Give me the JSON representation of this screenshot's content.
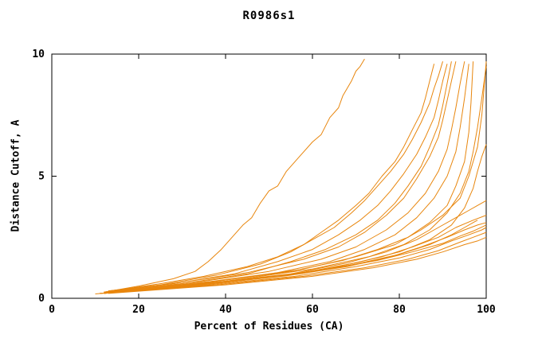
{
  "chart_data": {
    "type": "line",
    "title": "R0986s1",
    "xlabel": "Percent of Residues (CA)",
    "ylabel": "Distance Cutoff, A",
    "xlim": [
      0,
      100
    ],
    "ylim": [
      0,
      10
    ],
    "xticks": [
      0,
      20,
      40,
      60,
      80,
      100
    ],
    "yticks": [
      0,
      5,
      10
    ],
    "grid": false,
    "legend": "none",
    "line_color": "#e8860d",
    "axis_color": "#000000",
    "series": [
      {
        "points": [
          [
            12,
            0.25
          ],
          [
            20,
            0.5
          ],
          [
            28,
            0.8
          ],
          [
            33,
            1.1
          ],
          [
            36,
            1.5
          ],
          [
            39,
            2.0
          ],
          [
            42,
            2.6
          ],
          [
            44,
            3.0
          ],
          [
            46,
            3.3
          ],
          [
            48,
            3.9
          ],
          [
            50,
            4.4
          ],
          [
            52,
            4.6
          ],
          [
            54,
            5.2
          ],
          [
            57,
            5.8
          ],
          [
            60,
            6.4
          ],
          [
            62,
            6.7
          ],
          [
            64,
            7.4
          ],
          [
            66,
            7.8
          ],
          [
            67,
            8.3
          ],
          [
            69,
            8.9
          ],
          [
            70,
            9.3
          ],
          [
            71,
            9.5
          ],
          [
            72,
            9.8
          ]
        ]
      },
      {
        "points": [
          [
            12,
            0.25
          ],
          [
            25,
            0.6
          ],
          [
            35,
            0.9
          ],
          [
            45,
            1.3
          ],
          [
            52,
            1.7
          ],
          [
            58,
            2.2
          ],
          [
            62,
            2.7
          ],
          [
            66,
            3.2
          ],
          [
            70,
            3.8
          ],
          [
            73,
            4.3
          ],
          [
            76,
            5.0
          ],
          [
            79,
            5.6
          ],
          [
            81,
            6.2
          ],
          [
            83,
            6.9
          ],
          [
            85,
            7.6
          ],
          [
            86,
            8.2
          ],
          [
            87,
            8.9
          ],
          [
            88,
            9.6
          ]
        ]
      },
      {
        "points": [
          [
            13,
            0.3
          ],
          [
            25,
            0.55
          ],
          [
            38,
            0.95
          ],
          [
            48,
            1.4
          ],
          [
            55,
            1.9
          ],
          [
            60,
            2.4
          ],
          [
            65,
            2.9
          ],
          [
            69,
            3.5
          ],
          [
            72,
            4.0
          ],
          [
            75,
            4.6
          ],
          [
            78,
            5.2
          ],
          [
            81,
            5.9
          ],
          [
            83,
            6.5
          ],
          [
            85,
            7.2
          ],
          [
            87,
            8.0
          ],
          [
            88,
            8.6
          ],
          [
            89,
            9.1
          ],
          [
            90,
            9.7
          ]
        ]
      },
      {
        "points": [
          [
            13,
            0.3
          ],
          [
            28,
            0.6
          ],
          [
            42,
            1.0
          ],
          [
            52,
            1.5
          ],
          [
            60,
            2.0
          ],
          [
            66,
            2.6
          ],
          [
            71,
            3.2
          ],
          [
            75,
            3.8
          ],
          [
            78,
            4.4
          ],
          [
            81,
            5.1
          ],
          [
            84,
            5.9
          ],
          [
            86,
            6.6
          ],
          [
            88,
            7.4
          ],
          [
            89,
            8.1
          ],
          [
            90,
            8.9
          ],
          [
            91,
            9.6
          ]
        ]
      },
      {
        "points": [
          [
            12,
            0.2
          ],
          [
            30,
            0.6
          ],
          [
            45,
            1.0
          ],
          [
            55,
            1.5
          ],
          [
            63,
            2.0
          ],
          [
            70,
            2.6
          ],
          [
            75,
            3.2
          ],
          [
            79,
            3.9
          ],
          [
            82,
            4.6
          ],
          [
            85,
            5.4
          ],
          [
            87,
            6.2
          ],
          [
            89,
            7.1
          ],
          [
            90,
            7.9
          ],
          [
            91,
            8.8
          ],
          [
            92,
            9.7
          ]
        ]
      },
      {
        "points": [
          [
            14,
            0.3
          ],
          [
            30,
            0.65
          ],
          [
            45,
            1.05
          ],
          [
            58,
            1.6
          ],
          [
            66,
            2.1
          ],
          [
            72,
            2.7
          ],
          [
            77,
            3.4
          ],
          [
            81,
            4.1
          ],
          [
            84,
            4.9
          ],
          [
            87,
            5.8
          ],
          [
            89,
            6.6
          ],
          [
            90,
            7.3
          ],
          [
            91,
            8.1
          ],
          [
            92,
            8.9
          ],
          [
            93,
            9.7
          ]
        ]
      },
      {
        "points": [
          [
            12,
            0.25
          ],
          [
            35,
            0.7
          ],
          [
            50,
            1.1
          ],
          [
            62,
            1.6
          ],
          [
            70,
            2.1
          ],
          [
            77,
            2.8
          ],
          [
            82,
            3.5
          ],
          [
            86,
            4.3
          ],
          [
            89,
            5.2
          ],
          [
            91,
            6.1
          ],
          [
            92,
            6.9
          ],
          [
            93,
            7.8
          ],
          [
            94,
            8.8
          ],
          [
            95,
            9.7
          ]
        ]
      },
      {
        "points": [
          [
            13,
            0.25
          ],
          [
            35,
            0.65
          ],
          [
            52,
            1.05
          ],
          [
            64,
            1.5
          ],
          [
            72,
            2.0
          ],
          [
            79,
            2.6
          ],
          [
            84,
            3.3
          ],
          [
            88,
            4.1
          ],
          [
            91,
            5.0
          ],
          [
            93,
            6.0
          ],
          [
            94,
            7.0
          ],
          [
            95,
            8.2
          ],
          [
            96,
            9.6
          ]
        ]
      },
      {
        "points": [
          [
            12,
            0.2
          ],
          [
            38,
            0.7
          ],
          [
            55,
            1.1
          ],
          [
            67,
            1.55
          ],
          [
            75,
            2.0
          ],
          [
            82,
            2.5
          ],
          [
            87,
            3.1
          ],
          [
            91,
            3.8
          ],
          [
            93,
            4.6
          ],
          [
            95,
            5.6
          ],
          [
            96,
            6.8
          ],
          [
            96.5,
            8.0
          ],
          [
            97,
            9.7
          ]
        ]
      },
      {
        "points": [
          [
            13,
            0.25
          ],
          [
            40,
            0.75
          ],
          [
            58,
            1.2
          ],
          [
            70,
            1.7
          ],
          [
            79,
            2.2
          ],
          [
            85,
            2.8
          ],
          [
            90,
            3.4
          ],
          [
            94,
            4.1
          ],
          [
            96,
            5.0
          ],
          [
            98,
            6.2
          ],
          [
            99,
            7.5
          ],
          [
            99.5,
            8.6
          ],
          [
            100,
            9.7
          ]
        ]
      },
      {
        "points": [
          [
            12,
            0.25
          ],
          [
            40,
            0.7
          ],
          [
            60,
            1.2
          ],
          [
            73,
            1.7
          ],
          [
            81,
            2.2
          ],
          [
            87,
            2.8
          ],
          [
            91,
            3.5
          ],
          [
            94,
            4.3
          ],
          [
            96,
            5.2
          ],
          [
            97,
            6.0
          ],
          [
            98,
            7.0
          ],
          [
            99,
            8.2
          ],
          [
            100,
            9.5
          ]
        ]
      },
      {
        "points": [
          [
            11,
            0.2
          ],
          [
            36,
            0.6
          ],
          [
            56,
            1.0
          ],
          [
            70,
            1.45
          ],
          [
            80,
            1.9
          ],
          [
            87,
            2.4
          ],
          [
            92,
            3.0
          ],
          [
            95,
            3.7
          ],
          [
            97,
            4.5
          ],
          [
            98,
            5.2
          ],
          [
            99,
            5.8
          ],
          [
            100,
            6.3
          ]
        ]
      },
      {
        "points": [
          [
            11,
            0.2
          ],
          [
            35,
            0.6
          ],
          [
            55,
            1.0
          ],
          [
            68,
            1.45
          ],
          [
            77,
            1.9
          ],
          [
            84,
            2.4
          ],
          [
            89,
            2.9
          ],
          [
            93,
            3.3
          ],
          [
            96,
            3.6
          ],
          [
            98,
            3.8
          ],
          [
            100,
            4.0
          ]
        ]
      },
      {
        "points": [
          [
            11,
            0.2
          ],
          [
            33,
            0.55
          ],
          [
            52,
            0.9
          ],
          [
            66,
            1.3
          ],
          [
            76,
            1.7
          ],
          [
            83,
            2.1
          ],
          [
            89,
            2.5
          ],
          [
            93,
            2.9
          ],
          [
            97,
            3.2
          ],
          [
            100,
            3.4
          ]
        ]
      },
      {
        "points": [
          [
            12,
            0.22
          ],
          [
            34,
            0.55
          ],
          [
            54,
            0.92
          ],
          [
            68,
            1.3
          ],
          [
            78,
            1.7
          ],
          [
            85,
            2.1
          ],
          [
            91,
            2.5
          ],
          [
            95,
            2.8
          ],
          [
            98,
            3.0
          ],
          [
            100,
            3.1
          ]
        ]
      },
      {
        "points": [
          [
            12,
            0.2
          ],
          [
            37,
            0.6
          ],
          [
            57,
            1.0
          ],
          [
            70,
            1.4
          ],
          [
            80,
            1.8
          ],
          [
            87,
            2.2
          ],
          [
            92,
            2.6
          ],
          [
            95,
            2.9
          ],
          [
            97,
            3.1
          ],
          [
            98,
            3.2
          ]
        ]
      },
      {
        "points": [
          [
            12,
            0.2
          ],
          [
            36,
            0.55
          ],
          [
            56,
            0.9
          ],
          [
            70,
            1.3
          ],
          [
            80,
            1.65
          ],
          [
            87,
            2.0
          ],
          [
            92,
            2.35
          ],
          [
            96,
            2.6
          ],
          [
            99,
            2.8
          ],
          [
            100,
            2.9
          ]
        ]
      },
      {
        "points": [
          [
            13,
            0.22
          ],
          [
            38,
            0.55
          ],
          [
            58,
            0.9
          ],
          [
            72,
            1.25
          ],
          [
            82,
            1.6
          ],
          [
            89,
            1.95
          ],
          [
            94,
            2.3
          ],
          [
            97,
            2.5
          ],
          [
            100,
            2.7
          ]
        ]
      },
      {
        "points": [
          [
            13,
            0.2
          ],
          [
            40,
            0.55
          ],
          [
            60,
            0.9
          ],
          [
            74,
            1.25
          ],
          [
            84,
            1.6
          ],
          [
            90,
            1.9
          ],
          [
            95,
            2.2
          ],
          [
            98,
            2.35
          ],
          [
            100,
            2.5
          ]
        ]
      },
      {
        "points": [
          [
            10,
            0.18
          ],
          [
            32,
            0.5
          ],
          [
            50,
            0.85
          ],
          [
            64,
            1.2
          ],
          [
            75,
            1.55
          ],
          [
            83,
            1.9
          ],
          [
            90,
            2.25
          ],
          [
            94,
            2.55
          ],
          [
            97,
            2.75
          ],
          [
            100,
            3.0
          ]
        ]
      }
    ]
  }
}
